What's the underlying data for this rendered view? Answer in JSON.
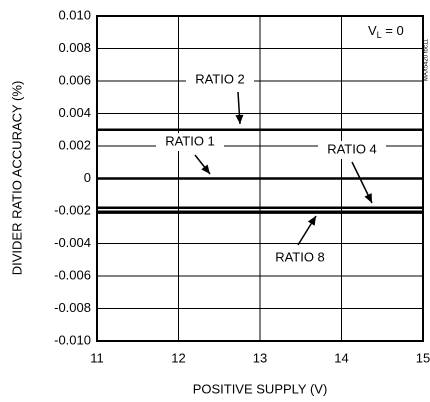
{
  "chart_data": {
    "type": "line",
    "xlabel": "POSITIVE SUPPLY (V)",
    "ylabel": "DIVIDER RATIO ACCURACY (%)",
    "condition": [
      "V",
      "L",
      " = 0"
    ],
    "figure_id": "MAX5420 toc11",
    "x": [
      11,
      15
    ],
    "series": [
      {
        "name": "RATIO 2",
        "color": "#000000",
        "values": [
          0.003,
          0.003
        ]
      },
      {
        "name": "RATIO 1",
        "color": "#000000",
        "values": [
          0,
          0
        ]
      },
      {
        "name": "RATIO 4",
        "color": "#000000",
        "values": [
          -0.0018,
          -0.0018
        ]
      },
      {
        "name": "RATIO 8",
        "color": "#000000",
        "values": [
          -0.0021,
          -0.0021
        ]
      }
    ],
    "xlim": [
      11,
      15
    ],
    "xticks": [
      11,
      12,
      13,
      14,
      15
    ],
    "ylim": [
      -0.01,
      0.01
    ],
    "yticks": [
      {
        "value": -0.01,
        "label": "-0.010"
      },
      -0.008,
      -0.006,
      -0.004,
      -0.002,
      0,
      0.002,
      0.004,
      0.006,
      0.008,
      {
        "value": 0.01,
        "label": "0.010"
      }
    ],
    "grid": true
  }
}
